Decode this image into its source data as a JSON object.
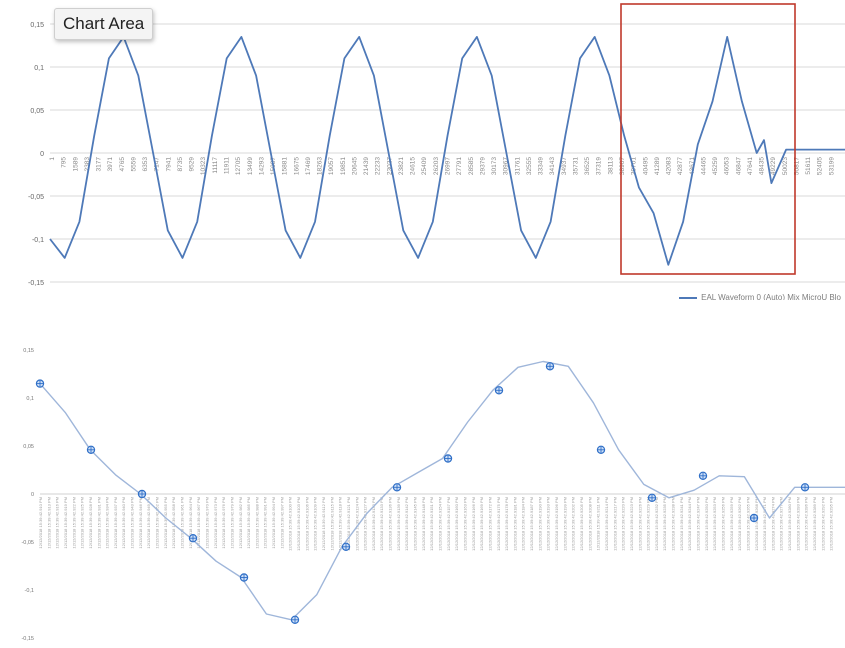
{
  "tooltip": {
    "text": "Chart Area"
  },
  "legend": {
    "text": "EAL Waveform 0 (Auto) Mix MicroU Blo"
  },
  "colors": {
    "line": "#4e79b8",
    "grid": "#d9d9d9",
    "highlight": "#c0392b",
    "marker": "#2f6fc7"
  },
  "chart_data": [
    {
      "type": "line",
      "title": "",
      "ylim": [
        -0.15,
        0.15
      ],
      "y_ticks": [
        "0,15",
        "0,1",
        "0,05",
        "0",
        "-0,05",
        "-0,1",
        "-0,15"
      ],
      "grid": true,
      "highlight_box": "last cycle (approx. samples 40000-50000)",
      "x_tick_labels": [
        "1",
        "795",
        "1589",
        "2383",
        "3177",
        "3971",
        "4765",
        "5559",
        "6353",
        "7147",
        "7941",
        "8735",
        "9529",
        "10323",
        "11117",
        "11911",
        "12705",
        "13499",
        "14293",
        "15087",
        "15881",
        "16675",
        "17469",
        "18263",
        "19057",
        "19851",
        "20645",
        "21439",
        "22233",
        "23027",
        "23821",
        "24615",
        "25409",
        "26203",
        "26997",
        "27791",
        "28585",
        "29379",
        "30173",
        "30967",
        "31761",
        "32555",
        "33349",
        "34143",
        "34937",
        "35731",
        "36525",
        "37319",
        "38113",
        "38907",
        "39701",
        "40495",
        "41289",
        "42083",
        "42877",
        "43671",
        "44465",
        "45259",
        "46053",
        "46847",
        "47641",
        "48435",
        "49229",
        "50023",
        "50817",
        "51611",
        "52405",
        "53199"
      ],
      "series": [
        {
          "x": [
            0,
            1000,
            2000,
            3000,
            4000,
            5000,
            6000,
            7000,
            8000,
            9000,
            10000,
            11000,
            12000,
            13000,
            14000,
            15000,
            16000,
            17000,
            18000,
            19000,
            20000,
            21000,
            22000,
            23000,
            24000,
            25000,
            26000,
            27000,
            28000,
            29000,
            30000,
            31000,
            32000,
            33000,
            34000,
            35000,
            36000,
            37000,
            38000,
            39000,
            40000,
            41000,
            42000,
            43000,
            44000,
            45000,
            46000,
            47000,
            48000,
            48500,
            49000,
            50000,
            51000,
            52000,
            53000,
            54000
          ],
          "values": [
            -0.1,
            -0.122,
            -0.08,
            0.02,
            0.11,
            0.135,
            0.09,
            0.0,
            -0.09,
            -0.122,
            -0.08,
            0.02,
            0.11,
            0.135,
            0.09,
            0.0,
            -0.09,
            -0.122,
            -0.08,
            0.02,
            0.11,
            0.135,
            0.09,
            0.0,
            -0.09,
            -0.122,
            -0.08,
            0.02,
            0.11,
            0.135,
            0.09,
            0.0,
            -0.09,
            -0.122,
            -0.08,
            0.02,
            0.11,
            0.135,
            0.09,
            0.02,
            -0.04,
            -0.07,
            -0.13,
            -0.08,
            0.01,
            0.06,
            0.135,
            0.06,
            0.0,
            0.015,
            -0.035,
            0.004,
            0.004,
            0.004,
            0.004,
            0.004
          ]
        }
      ]
    },
    {
      "type": "line",
      "title": "",
      "ylim": [
        -0.15,
        0.15
      ],
      "y_ticks": [
        "0,15",
        "0,1",
        "0,05",
        "0",
        "-0,05",
        "-0,1",
        "-0,15"
      ],
      "grid": false,
      "x_tick_template": "12/12/2018 15:39:42.9",
      "x_tick_count": 96,
      "marker_values": [
        0.115,
        0.046,
        0.0,
        -0.046,
        -0.087,
        -0.131,
        -0.055,
        0.007,
        0.037,
        0.108,
        0.133,
        0.046,
        -0.004,
        0.019,
        -0.025,
        0.007
      ],
      "series": [
        {
          "values": [
            0.115,
            0.085,
            0.046,
            0.02,
            0.0,
            -0.025,
            -0.046,
            -0.07,
            -0.087,
            -0.125,
            -0.131,
            -0.105,
            -0.055,
            -0.02,
            0.007,
            0.022,
            0.037,
            0.075,
            0.108,
            0.132,
            0.138,
            0.133,
            0.095,
            0.046,
            0.01,
            -0.004,
            0.004,
            0.019,
            0.018,
            -0.025,
            0.007,
            0.007,
            0.007
          ]
        }
      ]
    }
  ]
}
